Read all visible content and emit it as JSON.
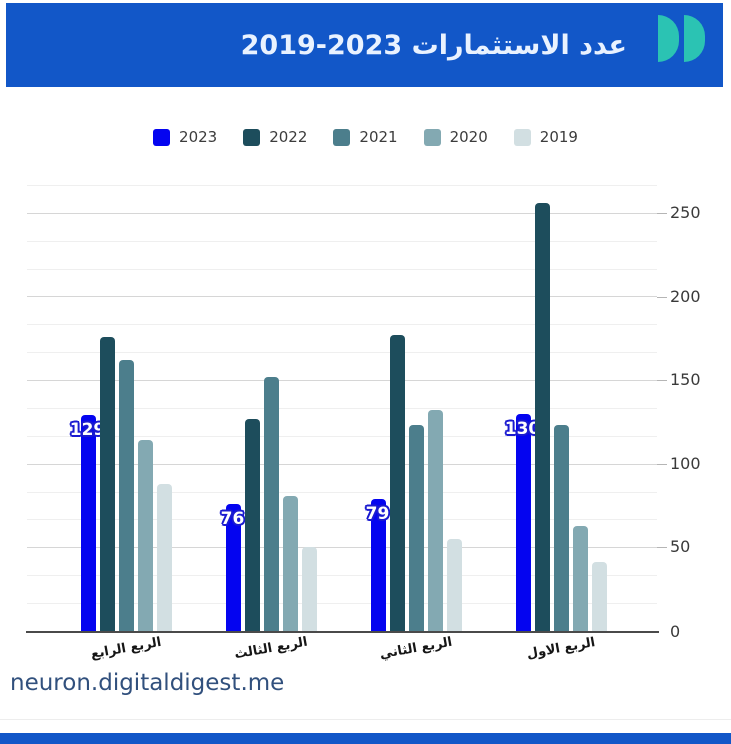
{
  "header": {
    "title": "عدد الاستثمارات 2023-2019",
    "bg_color": "#1257c8",
    "title_color": "#e9f2ff",
    "logo_color": "#2bc3b3"
  },
  "legend": {
    "items": [
      {
        "label": "2023",
        "color": "#0404f0"
      },
      {
        "label": "2022",
        "color": "#1d4d5c"
      },
      {
        "label": "2021",
        "color": "#4c7e8c"
      },
      {
        "label": "2020",
        "color": "#83a9b2"
      },
      {
        "label": "2019",
        "color": "#d2dfe2"
      }
    ]
  },
  "chart_data": {
    "type": "bar",
    "title": "عدد الاستثمارات 2019-2023",
    "categories": [
      "الربع الرابع",
      "الربع الثالث",
      "الربع الثاني",
      "الربع الاول"
    ],
    "series": [
      {
        "name": "2023",
        "color": "#0404f0",
        "values": [
          129,
          76,
          79,
          130
        ],
        "show_labels": true
      },
      {
        "name": "2022",
        "color": "#1d4d5c",
        "values": [
          176,
          127,
          177,
          256
        ],
        "show_labels": false
      },
      {
        "name": "2021",
        "color": "#4c7e8c",
        "values": [
          162,
          152,
          123,
          123
        ],
        "show_labels": false
      },
      {
        "name": "2020",
        "color": "#83a9b2",
        "values": [
          114,
          81,
          132,
          63
        ],
        "show_labels": false
      },
      {
        "name": "2019",
        "color": "#d2dfe2",
        "values": [
          88,
          50,
          55,
          41
        ],
        "show_labels": false
      }
    ],
    "data_labels": [
      "129",
      "76",
      "79",
      "130"
    ],
    "y_ticks": [
      0,
      50,
      100,
      150,
      200,
      250
    ],
    "ylim": [
      0,
      266.67
    ],
    "y_minor_step": 16.667,
    "grid": true,
    "legend_position": "top",
    "y_axis_side": "right",
    "value_label_outline_color": "#1a1ad0"
  },
  "footer": {
    "link": "neuron.digitaldigest.me",
    "bar_color": "#1257c8"
  }
}
